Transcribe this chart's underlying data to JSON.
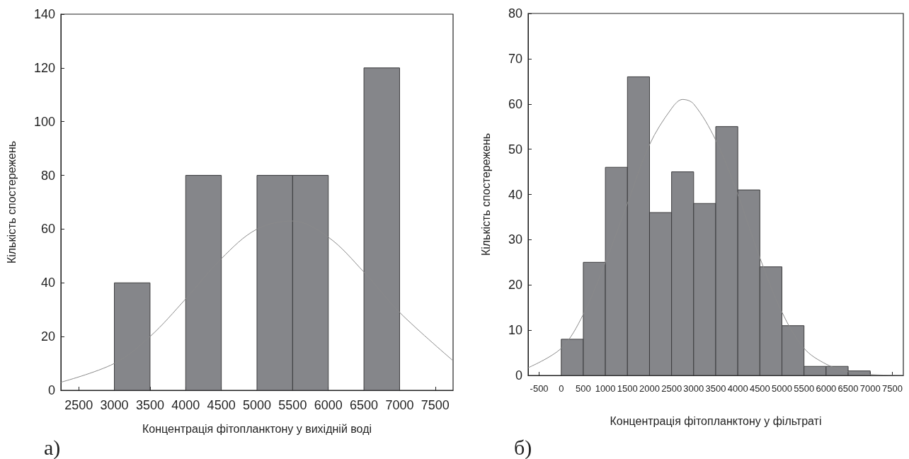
{
  "chart_data": [
    {
      "type": "histogram",
      "xlabel": "Концентрація фітопланктону у вихідній воді",
      "ylabel": "Кількість спостережень",
      "annotations": [
        "а)"
      ],
      "series": [
        {
          "type": "histogram",
          "bins": [
            3000,
            3500,
            4000,
            4500,
            5000,
            5500,
            6000,
            6500,
            7000
          ],
          "values": [
            40,
            0,
            80,
            0,
            80,
            80,
            0,
            120
          ],
          "color": "#85868a"
        },
        {
          "type": "line",
          "x": [
            2250,
            3000,
            3500,
            4000,
            4500,
            5000,
            5500,
            6000,
            6500,
            7000,
            7750
          ],
          "values": [
            3,
            10,
            20,
            34,
            49,
            60,
            63,
            57,
            44,
            29,
            11
          ],
          "color": "#8a8a8a"
        }
      ],
      "xlim": [
        2250,
        7750
      ],
      "xticks": [
        2500,
        3000,
        3500,
        4000,
        4500,
        5000,
        5500,
        6000,
        6500,
        7000,
        7500
      ],
      "ylim": [
        0,
        140
      ],
      "yticks": [
        0,
        20,
        40,
        60,
        80,
        100,
        120,
        140
      ],
      "grid": false,
      "marker": "none",
      "line_style": "solid"
    },
    {
      "type": "histogram",
      "xlabel": "Концентрація фітопланктону у фільтраті",
      "ylabel": "Кількість спостережень",
      "annotations": [
        "б)"
      ],
      "series": [
        {
          "type": "histogram",
          "bins": [
            0,
            500,
            1000,
            1500,
            2000,
            2500,
            3000,
            3500,
            4000,
            4500,
            5000,
            5500,
            6000,
            6500,
            7000
          ],
          "values": [
            8,
            25,
            46,
            66,
            36,
            45,
            38,
            55,
            41,
            24,
            11,
            2,
            2,
            1
          ],
          "color": "#85868a"
        },
        {
          "type": "line",
          "x": [
            -750,
            0,
            500,
            1000,
            1500,
            2000,
            2500,
            2750,
            3000,
            3500,
            4000,
            4500,
            5000,
            5500,
            6000,
            6500,
            7000,
            7750
          ],
          "values": [
            1.7,
            6,
            13.5,
            25,
            38,
            51,
            59,
            61,
            60,
            52,
            40,
            26,
            14,
            6,
            2.5,
            0.8,
            0.2,
            0
          ],
          "color": "#8a8a8a"
        }
      ],
      "xlim": [
        -750,
        7750
      ],
      "xticks": [
        -500,
        0,
        500,
        1000,
        1500,
        2000,
        2500,
        3000,
        3500,
        4000,
        4500,
        5000,
        5500,
        6000,
        6500,
        7000,
        7500
      ],
      "ylim": [
        0,
        80
      ],
      "yticks": [
        0,
        10,
        20,
        30,
        40,
        50,
        60,
        70,
        80
      ],
      "grid": false,
      "marker": "none",
      "line_style": "solid"
    }
  ]
}
